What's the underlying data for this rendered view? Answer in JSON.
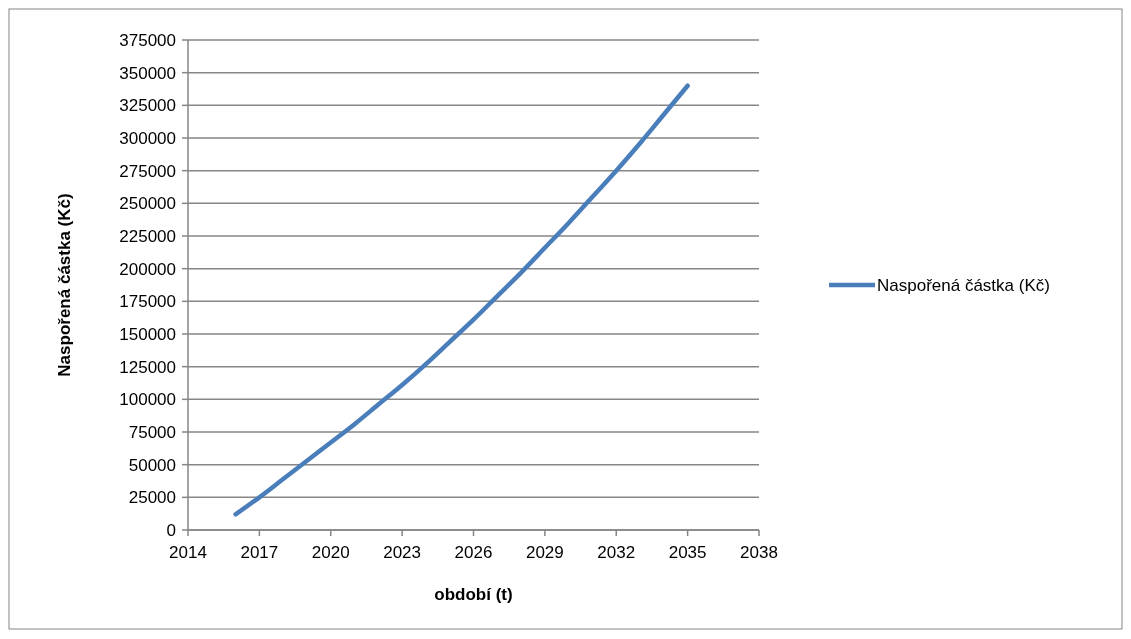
{
  "chart_data": {
    "type": "line",
    "xlabel": "období (t)",
    "ylabel": "Naspořená částka (Kč)",
    "x": [
      2016,
      2017,
      2018,
      2019,
      2020,
      2021,
      2022,
      2023,
      2024,
      2025,
      2026,
      2027,
      2028,
      2029,
      2030,
      2031,
      2032,
      2033,
      2034,
      2035
    ],
    "series": [
      {
        "name": "Naspořená částka (Kč)",
        "color": "#4a7ebb",
        "values": [
          12000,
          25000,
          39000,
          53000,
          67000,
          81000,
          96000,
          111000,
          127000,
          144000,
          161000,
          179000,
          197000,
          216000,
          235000,
          255000,
          275000,
          296000,
          318000,
          340000
        ]
      }
    ],
    "xlim": [
      2014,
      2038
    ],
    "xticks": [
      2014,
      2017,
      2020,
      2023,
      2026,
      2029,
      2032,
      2035,
      2038
    ],
    "ylim": [
      0,
      375000
    ],
    "yticks": [
      0,
      25000,
      50000,
      75000,
      100000,
      125000,
      150000,
      175000,
      200000,
      225000,
      250000,
      275000,
      300000,
      325000,
      350000,
      375000
    ],
    "grid": "y",
    "legend": "right",
    "marker": "none",
    "line_style": "solid"
  }
}
